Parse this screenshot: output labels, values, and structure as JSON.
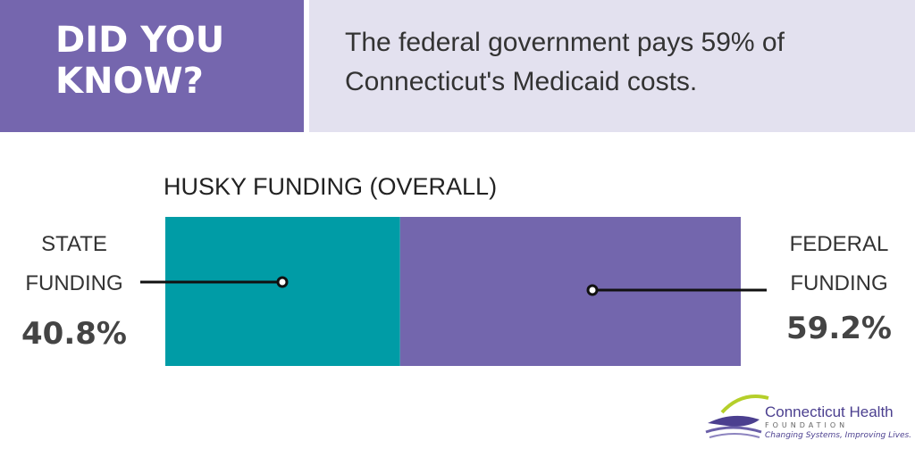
{
  "header": {
    "badge": "DID YOU KNOW?",
    "text": "The federal government pays 59% of Connecticut's Medicaid costs."
  },
  "chart_data": {
    "type": "stacked-bar",
    "title": "HUSKY FUNDING (OVERALL)",
    "series": [
      {
        "name": "STATE FUNDING",
        "color": "#009ca6",
        "values": [
          40.8
        ],
        "value_labels": [
          "40.8%"
        ]
      },
      {
        "name": "FEDERAL FUNDING",
        "color": "#7366ad",
        "values": [
          59.2
        ],
        "value_labels": [
          "59.2%"
        ]
      }
    ]
  },
  "logo": {
    "name": "Connecticut Health",
    "sub": "FOUNDATION",
    "tagline": "Changing Systems, Improving Lives."
  }
}
